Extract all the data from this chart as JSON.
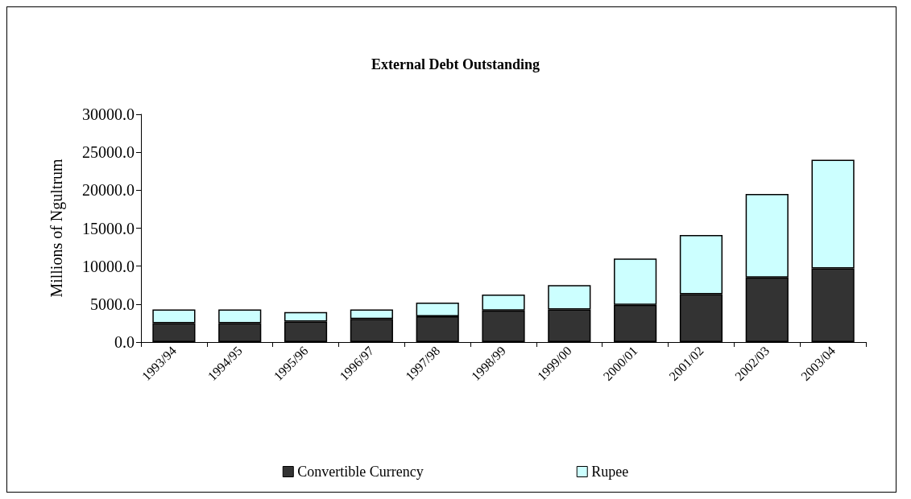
{
  "chart_data": {
    "type": "bar",
    "title": "External Debt Outstanding",
    "ylabel": "Millions of Ngultrum",
    "categories": [
      "1993/94",
      "1994/95",
      "1995/96",
      "1996/97",
      "1997/98",
      "1998/99",
      "1999/00",
      "2000/01",
      "2001/02",
      "2002/03",
      "2003/04"
    ],
    "series": [
      {
        "name": "Convertible Currency",
        "color": "#333333",
        "values": [
          2500,
          2500,
          2700,
          3050,
          3400,
          4150,
          4300,
          4900,
          6300,
          8500,
          9700
        ]
      },
      {
        "name": "Rupee",
        "color": "#ccffff",
        "values": [
          1800,
          1800,
          1250,
          1250,
          1800,
          2100,
          3200,
          6100,
          7800,
          11000,
          14300
        ]
      }
    ],
    "stacked": true,
    "ylim": [
      0,
      30000
    ],
    "yticks": [
      {
        "value": 0,
        "label": "0.0"
      },
      {
        "value": 5000,
        "label": "5000.0"
      },
      {
        "value": 10000,
        "label": "10000.0"
      },
      {
        "value": 15000,
        "label": "15000.0"
      },
      {
        "value": 20000,
        "label": "20000.0"
      },
      {
        "value": 25000,
        "label": "25000.0"
      },
      {
        "value": 30000,
        "label": "30000.0"
      }
    ],
    "grid": false,
    "legend": "bottom"
  }
}
